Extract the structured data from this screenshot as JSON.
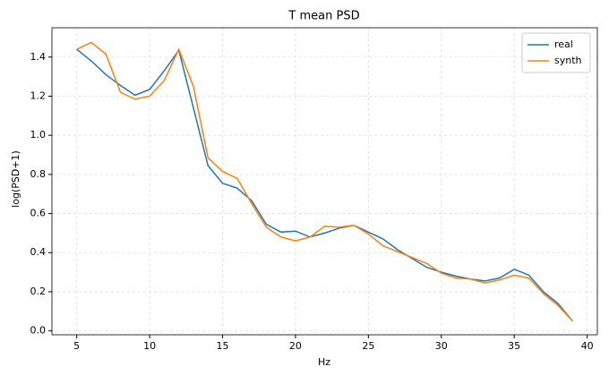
{
  "chart_data": {
    "type": "line",
    "title": "T mean PSD",
    "x_label": "Hz",
    "y_label": "log(PSD+1)",
    "x": [
      5,
      6,
      7,
      8,
      9,
      10,
      11,
      12,
      13,
      14,
      15,
      16,
      17,
      18,
      19,
      20,
      21,
      22,
      23,
      24,
      25,
      26,
      27,
      28,
      29,
      30,
      31,
      32,
      33,
      34,
      35,
      36,
      37,
      38,
      39
    ],
    "series": [
      {
        "name": "real",
        "color": "#1f77b4",
        "values": [
          1.44,
          1.38,
          1.31,
          1.255,
          1.205,
          1.235,
          1.33,
          1.435,
          1.14,
          0.845,
          0.755,
          0.73,
          0.665,
          0.545,
          0.505,
          0.51,
          0.48,
          0.5,
          0.525,
          0.54,
          0.505,
          0.47,
          0.415,
          0.37,
          0.325,
          0.3,
          0.28,
          0.265,
          0.255,
          0.27,
          0.315,
          0.285,
          0.2,
          0.14,
          0.05
        ]
      },
      {
        "name": "synth",
        "color": "#ff7f0e",
        "values": [
          1.44,
          1.475,
          1.415,
          1.22,
          1.185,
          1.2,
          1.28,
          1.44,
          1.25,
          0.885,
          0.815,
          0.78,
          0.65,
          0.53,
          0.48,
          0.46,
          0.48,
          0.535,
          0.53,
          0.54,
          0.495,
          0.435,
          0.405,
          0.375,
          0.345,
          0.295,
          0.27,
          0.265,
          0.245,
          0.26,
          0.285,
          0.27,
          0.19,
          0.13,
          0.05
        ]
      }
    ],
    "xlim": [
      3.3,
      40.7
    ],
    "xticks": [
      5,
      10,
      15,
      20,
      25,
      30,
      35,
      40
    ],
    "ylim": [
      -0.02,
      1.55
    ],
    "yticks": [
      {
        "value": 0,
        "label": "0.0"
      },
      {
        "value": 0.2,
        "label": "0.2"
      },
      {
        "value": 0.4,
        "label": "0.4"
      },
      {
        "value": 0.6,
        "label": "0.6"
      },
      {
        "value": 0.8,
        "label": "0.8"
      },
      {
        "value": 1,
        "label": "1.0"
      },
      {
        "value": 1.2,
        "label": "1.2"
      },
      {
        "value": 1.4,
        "label": "1.4"
      }
    ],
    "grid": true,
    "legend": "upper right"
  }
}
